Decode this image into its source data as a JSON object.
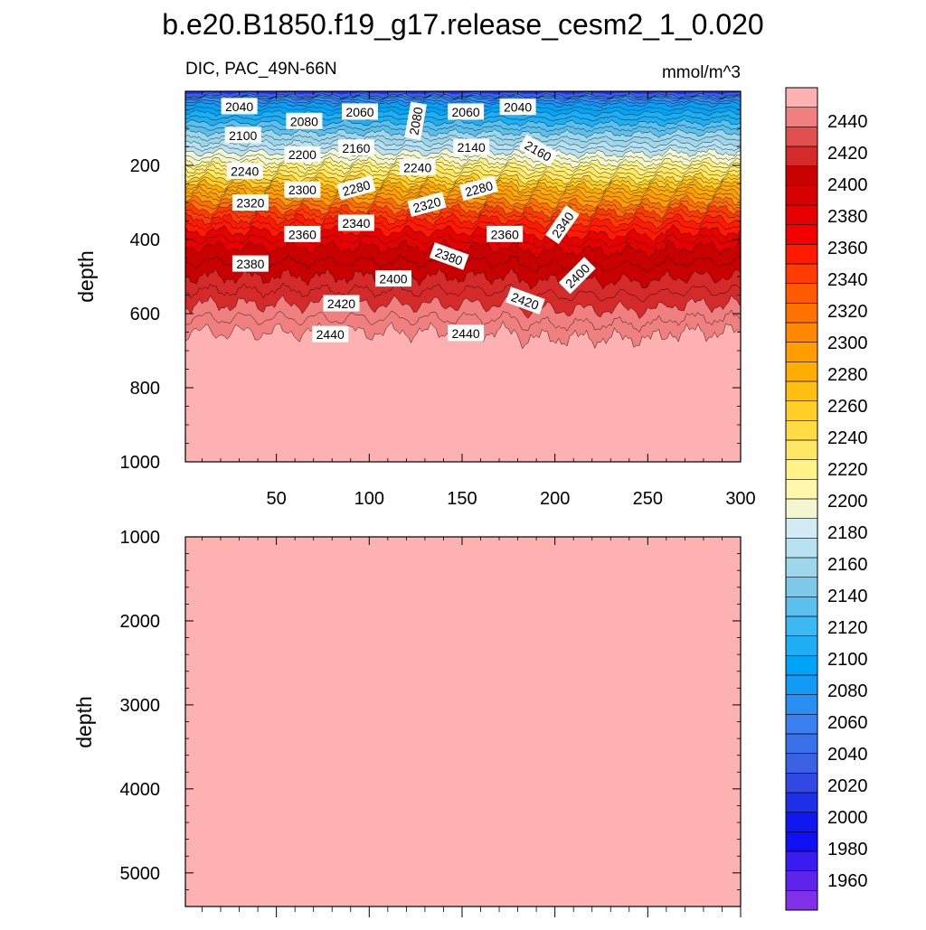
{
  "figure_title": "b.e20.B1850.f19_g17.release_cesm2_1_0.020",
  "chart_data": [
    {
      "type": "heatmap",
      "panel": "upper",
      "title": "DIC, PAC_49N-66N",
      "units_label": "mmol/m^3",
      "xlabel": "",
      "ylabel": "depth",
      "xlim": [
        1,
        300
      ],
      "ylim": [
        0,
        1000
      ],
      "y_reversed": true,
      "x_ticks": [
        50,
        100,
        150,
        200,
        250,
        300
      ],
      "y_ticks": [
        200,
        400,
        600,
        800,
        1000
      ],
      "contour_depth_profile": {
        "levels": [
          2040,
          2060,
          2080,
          2100,
          2120,
          2140,
          2160,
          2180,
          2200,
          2220,
          2240,
          2260,
          2280,
          2300,
          2320,
          2340,
          2360,
          2380,
          2400,
          2420,
          2440
        ],
        "mean_depth": [
          12,
          20,
          35,
          58,
          85,
          112,
          140,
          165,
          190,
          210,
          232,
          252,
          272,
          295,
          318,
          345,
          378,
          420,
          500,
          575,
          650
        ]
      },
      "contour_labels": [
        {
          "text": "2040",
          "x": 30,
          "y": 40,
          "angle": 0
        },
        {
          "text": "2080",
          "x": 65,
          "y": 80,
          "angle": 0
        },
        {
          "text": "2060",
          "x": 95,
          "y": 55,
          "angle": 0
        },
        {
          "text": "2080",
          "x": 125,
          "y": 80,
          "angle": -80
        },
        {
          "text": "2060",
          "x": 152,
          "y": 55,
          "angle": 0
        },
        {
          "text": "2040",
          "x": 180,
          "y": 42,
          "angle": 0
        },
        {
          "text": "2100",
          "x": 32,
          "y": 118,
          "angle": 0
        },
        {
          "text": "2200",
          "x": 64,
          "y": 170,
          "angle": 0
        },
        {
          "text": "2160",
          "x": 93,
          "y": 152,
          "angle": 0
        },
        {
          "text": "2140",
          "x": 155,
          "y": 150,
          "angle": 0
        },
        {
          "text": "2160",
          "x": 191,
          "y": 160,
          "angle": 30
        },
        {
          "text": "2240",
          "x": 33,
          "y": 215,
          "angle": 0
        },
        {
          "text": "2240",
          "x": 126,
          "y": 205,
          "angle": 0
        },
        {
          "text": "2300",
          "x": 64,
          "y": 265,
          "angle": 0
        },
        {
          "text": "2280",
          "x": 93,
          "y": 260,
          "angle": -15
        },
        {
          "text": "2280",
          "x": 159,
          "y": 262,
          "angle": -15
        },
        {
          "text": "2320",
          "x": 36,
          "y": 300,
          "angle": 0
        },
        {
          "text": "2320",
          "x": 131,
          "y": 305,
          "angle": -15
        },
        {
          "text": "2340",
          "x": 93,
          "y": 355,
          "angle": 0
        },
        {
          "text": "2340",
          "x": 204,
          "y": 360,
          "angle": -55
        },
        {
          "text": "2360",
          "x": 64,
          "y": 385,
          "angle": 0
        },
        {
          "text": "2360",
          "x": 173,
          "y": 385,
          "angle": 0
        },
        {
          "text": "2380",
          "x": 36,
          "y": 465,
          "angle": 0
        },
        {
          "text": "2380",
          "x": 143,
          "y": 445,
          "angle": 20
        },
        {
          "text": "2400",
          "x": 113,
          "y": 505,
          "angle": 0
        },
        {
          "text": "2400",
          "x": 212,
          "y": 497,
          "angle": -45
        },
        {
          "text": "2420",
          "x": 85,
          "y": 572,
          "angle": 0
        },
        {
          "text": "2420",
          "x": 184,
          "y": 565,
          "angle": 20
        },
        {
          "text": "2440",
          "x": 79,
          "y": 655,
          "angle": 0
        },
        {
          "text": "2440",
          "x": 152,
          "y": 652,
          "angle": 0
        }
      ]
    },
    {
      "type": "heatmap",
      "panel": "lower",
      "title": "",
      "xlabel": "",
      "ylabel": "depth",
      "xlim": [
        1,
        300
      ],
      "ylim": [
        1000,
        5400
      ],
      "y_reversed": true,
      "y_ticks": [
        1000,
        2000,
        3000,
        4000,
        5000
      ],
      "fill_value": "above 2450"
    }
  ],
  "colorbar": {
    "labels": [
      2440,
      2420,
      2400,
      2380,
      2360,
      2340,
      2320,
      2300,
      2280,
      2260,
      2240,
      2220,
      2200,
      2180,
      2160,
      2140,
      2120,
      2100,
      2080,
      2060,
      2040,
      2020,
      2000,
      1980,
      1960
    ],
    "colors_top_to_bottom": [
      "#fdb1b1",
      "#f08080",
      "#e24f4f",
      "#d42a2a",
      "#c80000",
      "#d80000",
      "#e60000",
      "#f20000",
      "#ff1a00",
      "#ff3c00",
      "#ff5a00",
      "#ff7200",
      "#ff8800",
      "#ff9c00",
      "#ffae00",
      "#ffbf10",
      "#ffcf28",
      "#ffdc44",
      "#ffe866",
      "#fff288",
      "#fff8aa",
      "#f2f7d0",
      "#d2ebf5",
      "#b8e2f1",
      "#9ed6ec",
      "#7ec9ea",
      "#5cc0ee",
      "#3cb8f2",
      "#1eaef4",
      "#00a4f6",
      "#129af5",
      "#2a8ef2",
      "#3a80ee",
      "#3a70ea",
      "#3a60e4",
      "#3248e2",
      "#2030e8",
      "#1018f0",
      "#1010f4",
      "#3a1af0",
      "#5e24ec",
      "#8030e8"
    ]
  }
}
